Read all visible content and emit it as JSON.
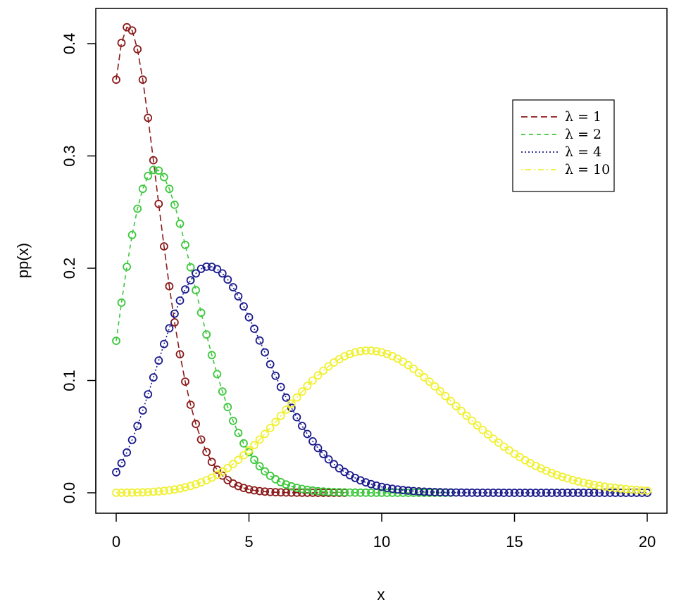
{
  "chart_data": {
    "type": "scatter",
    "xlabel": "x",
    "ylabel": "pp(x)",
    "xlim": [
      0,
      20
    ],
    "ylim": [
      0,
      0.42
    ],
    "x_ticks": [
      "0",
      "5",
      "10",
      "15",
      "20"
    ],
    "y_ticks": [
      "0.0",
      "0.1",
      "0.2",
      "0.3",
      "0.4"
    ],
    "x_tick_values": [
      0,
      5,
      10,
      15,
      20
    ],
    "y_tick_values": [
      0,
      0.1,
      0.2,
      0.3,
      0.4
    ],
    "grid": false,
    "legend_position": "top-right",
    "x_step": 0.2,
    "series": [
      {
        "name": "λ = 1",
        "lambda": 1,
        "color": "#8b1a1a",
        "line_style": "dashed-long",
        "x_max": 8.6
      },
      {
        "name": "λ = 2",
        "lambda": 2,
        "color": "#3cc83c",
        "line_style": "dashed",
        "x_max": 12.6
      },
      {
        "name": "λ = 4",
        "lambda": 4,
        "color": "#1a1a8c",
        "line_style": "dotted",
        "x_max": 20
      },
      {
        "name": "λ = 10",
        "lambda": 10,
        "color": "#f0f032",
        "line_style": "dot-dash",
        "x_max": 20
      }
    ]
  }
}
